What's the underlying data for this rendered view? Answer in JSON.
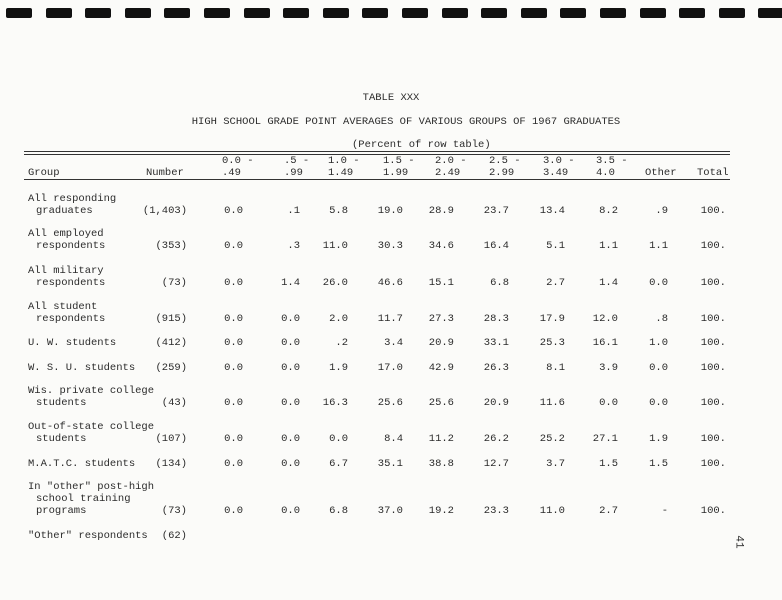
{
  "table_label": "TABLE XXX",
  "title": "HIGH SCHOOL GRADE POINT AVERAGES OF VARIOUS GROUPS OF 1967 GRADUATES",
  "subtitle": "(Percent of row table)",
  "headers": {
    "group": "Group",
    "number": "Number",
    "ranges": [
      [
        "0.0 -",
        ".49"
      ],
      [
        ".5 -",
        ".99"
      ],
      [
        "1.0 -",
        "1.49"
      ],
      [
        "1.5 -",
        "1.99"
      ],
      [
        "2.0 -",
        "2.49"
      ],
      [
        "2.5 -",
        "2.99"
      ],
      [
        "3.0 -",
        "3.49"
      ],
      [
        "3.5 -",
        "4.0"
      ]
    ],
    "other": "Other",
    "total": "Total"
  },
  "rows": [
    {
      "group": [
        "All responding",
        "graduates"
      ],
      "number": "(1,403)",
      "values": [
        "0.0",
        ".1",
        "5.8",
        "19.0",
        "28.9",
        "23.7",
        "13.4",
        "8.2",
        ".9",
        "100."
      ]
    },
    {
      "group": [
        "All employed",
        "respondents"
      ],
      "number": "(353)",
      "values": [
        "0.0",
        ".3",
        "11.0",
        "30.3",
        "34.6",
        "16.4",
        "5.1",
        "1.1",
        "1.1",
        "100."
      ]
    },
    {
      "group": [
        "All military",
        "respondents"
      ],
      "number": "(73)",
      "values": [
        "0.0",
        "1.4",
        "26.0",
        "46.6",
        "15.1",
        "6.8",
        "2.7",
        "1.4",
        "0.0",
        "100."
      ]
    },
    {
      "group": [
        "All student",
        "respondents"
      ],
      "number": "(915)",
      "values": [
        "0.0",
        "0.0",
        "2.0",
        "11.7",
        "27.3",
        "28.3",
        "17.9",
        "12.0",
        ".8",
        "100."
      ]
    },
    {
      "group": [
        "U. W. students"
      ],
      "number": "(412)",
      "values": [
        "0.0",
        "0.0",
        ".2",
        "3.4",
        "20.9",
        "33.1",
        "25.3",
        "16.1",
        "1.0",
        "100."
      ]
    },
    {
      "group": [
        "W. S. U. students"
      ],
      "number": "(259)",
      "values": [
        "0.0",
        "0.0",
        "1.9",
        "17.0",
        "42.9",
        "26.3",
        "8.1",
        "3.9",
        "0.0",
        "100."
      ]
    },
    {
      "group": [
        "Wis. private college",
        "students"
      ],
      "number": "(43)",
      "values": [
        "0.0",
        "0.0",
        "16.3",
        "25.6",
        "25.6",
        "20.9",
        "11.6",
        "0.0",
        "0.0",
        "100."
      ]
    },
    {
      "group": [
        "Out-of-state college",
        "students"
      ],
      "number": "(107)",
      "values": [
        "0.0",
        "0.0",
        "0.0",
        "8.4",
        "11.2",
        "26.2",
        "25.2",
        "27.1",
        "1.9",
        "100."
      ]
    },
    {
      "group": [
        "M.A.T.C. students"
      ],
      "number": "(134)",
      "values": [
        "0.0",
        "0.0",
        "6.7",
        "35.1",
        "38.8",
        "12.7",
        "3.7",
        "1.5",
        "1.5",
        "100."
      ]
    },
    {
      "group": [
        "In \"other\" post-high",
        "school training",
        "programs"
      ],
      "number": "(73)",
      "values": [
        "0.0",
        "0.0",
        "6.8",
        "37.0",
        "19.2",
        "23.3",
        "11.0",
        "2.7",
        "-",
        "100."
      ]
    },
    {
      "group": [
        "\"Other\" respondents"
      ],
      "number": "(62)",
      "values": []
    }
  ],
  "page_number": "41"
}
